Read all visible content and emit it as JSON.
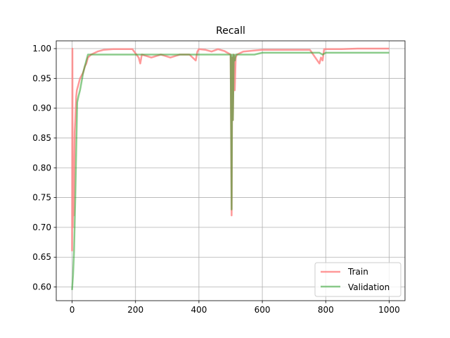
{
  "chart_data": {
    "type": "line",
    "title": "Recall",
    "xlabel": "",
    "ylabel": "",
    "xlim": [
      -50,
      1050
    ],
    "ylim": [
      0.577,
      1.013
    ],
    "xticks": [
      0,
      200,
      400,
      600,
      800,
      1000
    ],
    "yticks": [
      0.6,
      0.65,
      0.7,
      0.75,
      0.8,
      0.85,
      0.9,
      0.95,
      1.0
    ],
    "xtick_labels": [
      "0",
      "200",
      "400",
      "600",
      "800",
      "1000"
    ],
    "ytick_labels": [
      "0.60",
      "0.65",
      "0.70",
      "0.75",
      "0.80",
      "0.85",
      "0.90",
      "0.95",
      "1.00"
    ],
    "grid": true,
    "legend": {
      "position": "lower-right",
      "entries": [
        "Train",
        "Validation"
      ]
    },
    "series": [
      {
        "name": "Train",
        "color": "#ff7f7f",
        "alpha": 0.8,
        "x": [
          0,
          1,
          2,
          3,
          5,
          8,
          10,
          13,
          15,
          20,
          25,
          30,
          35,
          40,
          45,
          50,
          60,
          80,
          100,
          130,
          160,
          190,
          210,
          215,
          220,
          250,
          280,
          310,
          340,
          370,
          390,
          395,
          400,
          420,
          440,
          460,
          480,
          500,
          503,
          505,
          507,
          510,
          513,
          516,
          520,
          540,
          560,
          580,
          600,
          650,
          700,
          750,
          780,
          785,
          790,
          795,
          800,
          850,
          900,
          950,
          1000
        ],
        "values": [
          0.66,
          1.0,
          0.7,
          0.74,
          0.72,
          0.86,
          0.88,
          0.92,
          0.93,
          0.94,
          0.95,
          0.955,
          0.96,
          0.97,
          0.975,
          0.985,
          0.99,
          0.995,
          0.998,
          0.999,
          0.999,
          0.999,
          0.985,
          0.975,
          0.99,
          0.985,
          0.99,
          0.985,
          0.99,
          0.99,
          0.98,
          0.995,
          0.999,
          0.998,
          0.995,
          0.999,
          0.996,
          0.99,
          0.72,
          0.985,
          0.88,
          0.99,
          0.93,
          0.985,
          0.99,
          0.995,
          0.996,
          0.997,
          0.998,
          0.998,
          0.998,
          0.998,
          0.975,
          0.985,
          0.98,
          0.999,
          0.999,
          0.999,
          1.0,
          1.0,
          1.0
        ]
      },
      {
        "name": "Validation",
        "color": "#2ca02c",
        "alpha": 0.55,
        "x": [
          0,
          3,
          6,
          10,
          13,
          16,
          20,
          25,
          30,
          35,
          40,
          45,
          50,
          60,
          80,
          100,
          130,
          160,
          190,
          220,
          250,
          280,
          310,
          340,
          370,
          400,
          430,
          460,
          490,
          500,
          503,
          505,
          507,
          510,
          513,
          516,
          520,
          530,
          550,
          575,
          600,
          700,
          780,
          790,
          800,
          900,
          1000
        ],
        "values": [
          0.595,
          0.62,
          0.66,
          0.75,
          0.83,
          0.91,
          0.92,
          0.93,
          0.945,
          0.96,
          0.97,
          0.98,
          0.99,
          0.99,
          0.99,
          0.99,
          0.99,
          0.99,
          0.99,
          0.99,
          0.99,
          0.99,
          0.99,
          0.99,
          0.99,
          0.99,
          0.99,
          0.99,
          0.99,
          0.99,
          0.73,
          0.99,
          0.88,
          0.99,
          0.98,
          0.99,
          0.99,
          0.99,
          0.99,
          0.99,
          0.993,
          0.993,
          0.993,
          0.99,
          0.993,
          0.993,
          0.993
        ]
      }
    ]
  }
}
